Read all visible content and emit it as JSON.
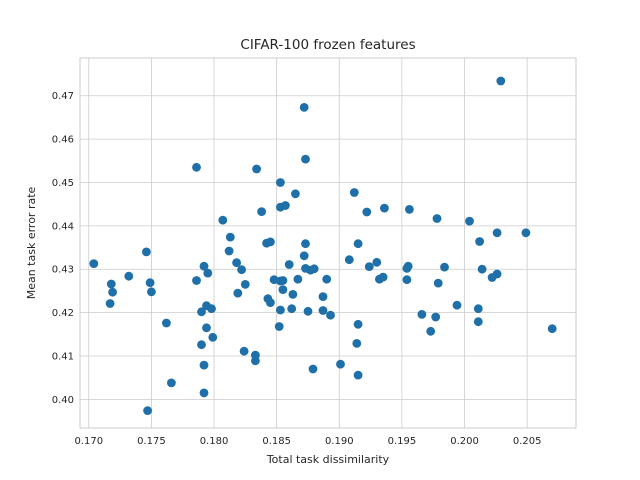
{
  "chart_data": {
    "type": "scatter",
    "title": "CIFAR-100 frozen features",
    "xlabel": "Total task dissimilarity",
    "ylabel": "Mean task error rate",
    "xlim": [
      0.1693,
      0.2089
    ],
    "ylim": [
      0.3934,
      0.4787
    ],
    "xticks": [
      0.17,
      0.175,
      0.18,
      0.185,
      0.19,
      0.195,
      0.2,
      0.205
    ],
    "xtick_labels": [
      "0.170",
      "0.175",
      "0.180",
      "0.185",
      "0.190",
      "0.195",
      "0.200",
      "0.205"
    ],
    "yticks": [
      0.4,
      0.41,
      0.42,
      0.43,
      0.44,
      0.45,
      0.46,
      0.47
    ],
    "ytick_labels": [
      "0.40",
      "0.41",
      "0.42",
      "0.43",
      "0.44",
      "0.45",
      "0.46",
      "0.47"
    ],
    "grid": true,
    "marker_color": "#1f6fa8",
    "series": [
      {
        "points": [
          [
            0.1704,
            0.4313
          ],
          [
            0.1718,
            0.4266
          ],
          [
            0.1719,
            0.4247
          ],
          [
            0.1717,
            0.4221
          ],
          [
            0.1732,
            0.4284
          ],
          [
            0.1746,
            0.434
          ],
          [
            0.1749,
            0.4269
          ],
          [
            0.175,
            0.4248
          ],
          [
            0.1762,
            0.4176
          ],
          [
            0.1766,
            0.4038
          ],
          [
            0.1747,
            0.3974
          ],
          [
            0.1786,
            0.4535
          ],
          [
            0.1786,
            0.4274
          ],
          [
            0.1792,
            0.4307
          ],
          [
            0.1795,
            0.4291
          ],
          [
            0.1794,
            0.4216
          ],
          [
            0.1798,
            0.4209
          ],
          [
            0.179,
            0.4202
          ],
          [
            0.1794,
            0.4165
          ],
          [
            0.1799,
            0.4143
          ],
          [
            0.179,
            0.4126
          ],
          [
            0.1792,
            0.4079
          ],
          [
            0.1792,
            0.4015
          ],
          [
            0.1807,
            0.4413
          ],
          [
            0.1813,
            0.4374
          ],
          [
            0.1812,
            0.4342
          ],
          [
            0.1818,
            0.4315
          ],
          [
            0.1822,
            0.4299
          ],
          [
            0.1825,
            0.4265
          ],
          [
            0.1819,
            0.4245
          ],
          [
            0.1824,
            0.4111
          ],
          [
            0.1833,
            0.4102
          ],
          [
            0.1833,
            0.4089
          ],
          [
            0.1834,
            0.4531
          ],
          [
            0.1838,
            0.4433
          ],
          [
            0.1842,
            0.436
          ],
          [
            0.1845,
            0.4363
          ],
          [
            0.1848,
            0.4276
          ],
          [
            0.1843,
            0.4232
          ],
          [
            0.1845,
            0.4223
          ],
          [
            0.1853,
            0.45
          ],
          [
            0.1853,
            0.4443
          ],
          [
            0.1857,
            0.4447
          ],
          [
            0.1853,
            0.4273
          ],
          [
            0.1855,
            0.4274
          ],
          [
            0.1855,
            0.4253
          ],
          [
            0.1853,
            0.4206
          ],
          [
            0.1852,
            0.4168
          ],
          [
            0.1865,
            0.4474
          ],
          [
            0.186,
            0.4311
          ],
          [
            0.1863,
            0.4242
          ],
          [
            0.1862,
            0.4209
          ],
          [
            0.1867,
            0.4277
          ],
          [
            0.1872,
            0.4673
          ],
          [
            0.1873,
            0.4554
          ],
          [
            0.1873,
            0.4359
          ],
          [
            0.1872,
            0.4331
          ],
          [
            0.1873,
            0.4302
          ],
          [
            0.1877,
            0.4298
          ],
          [
            0.188,
            0.4301
          ],
          [
            0.1875,
            0.4203
          ],
          [
            0.1879,
            0.407
          ],
          [
            0.189,
            0.4277
          ],
          [
            0.1887,
            0.4237
          ],
          [
            0.1887,
            0.4205
          ],
          [
            0.1893,
            0.4194
          ],
          [
            0.1901,
            0.4081
          ],
          [
            0.1908,
            0.4322
          ],
          [
            0.1912,
            0.4477
          ],
          [
            0.1915,
            0.4359
          ],
          [
            0.1915,
            0.4173
          ],
          [
            0.1914,
            0.4129
          ],
          [
            0.1915,
            0.4056
          ],
          [
            0.1922,
            0.4432
          ],
          [
            0.1924,
            0.4306
          ],
          [
            0.193,
            0.4316
          ],
          [
            0.1932,
            0.4277
          ],
          [
            0.1935,
            0.4282
          ],
          [
            0.1936,
            0.4441
          ],
          [
            0.1956,
            0.4438
          ],
          [
            0.1955,
            0.4307
          ],
          [
            0.1954,
            0.4302
          ],
          [
            0.1954,
            0.4276
          ],
          [
            0.1966,
            0.4196
          ],
          [
            0.1973,
            0.4157
          ],
          [
            0.1978,
            0.4417
          ],
          [
            0.1979,
            0.4268
          ],
          [
            0.1977,
            0.419
          ],
          [
            0.1984,
            0.4305
          ],
          [
            0.1994,
            0.4217
          ],
          [
            0.2004,
            0.4411
          ],
          [
            0.2012,
            0.4364
          ],
          [
            0.2014,
            0.43
          ],
          [
            0.2011,
            0.4209
          ],
          [
            0.2011,
            0.4179
          ],
          [
            0.2022,
            0.4281
          ],
          [
            0.2026,
            0.4384
          ],
          [
            0.2026,
            0.4289
          ],
          [
            0.2029,
            0.4734
          ],
          [
            0.2049,
            0.4384
          ],
          [
            0.207,
            0.4163
          ]
        ]
      }
    ]
  }
}
